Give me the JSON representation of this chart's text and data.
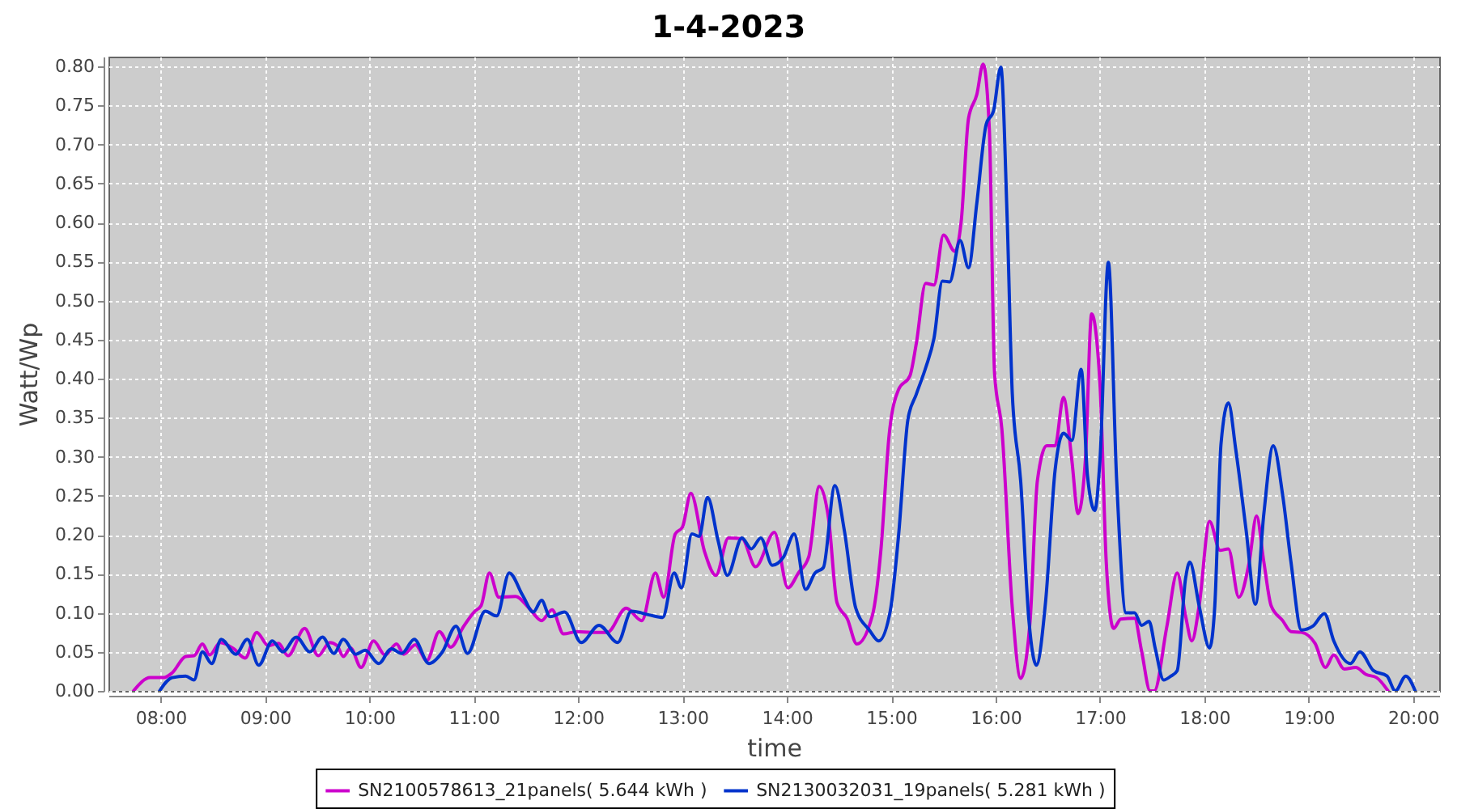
{
  "chart_data": {
    "type": "line",
    "title": "1-4-2023",
    "xlabel": "time",
    "ylabel": "Watt/Wp",
    "xlim": [
      7.5,
      20.25
    ],
    "ylim": [
      0,
      0.8125
    ],
    "xticks": [
      {
        "value": 8,
        "label": "08:00"
      },
      {
        "value": 9,
        "label": "09:00"
      },
      {
        "value": 10,
        "label": "10:00"
      },
      {
        "value": 11,
        "label": "11:00"
      },
      {
        "value": 12,
        "label": "12:00"
      },
      {
        "value": 13,
        "label": "13:00"
      },
      {
        "value": 14,
        "label": "14:00"
      },
      {
        "value": 15,
        "label": "15:00"
      },
      {
        "value": 16,
        "label": "16:00"
      },
      {
        "value": 17,
        "label": "17:00"
      },
      {
        "value": 18,
        "label": "18:00"
      },
      {
        "value": 19,
        "label": "19:00"
      },
      {
        "value": 20,
        "label": "20:00"
      }
    ],
    "yticks": [
      {
        "value": 0,
        "label": "0.00"
      },
      {
        "value": 0.05,
        "label": "0.05"
      },
      {
        "value": 0.1,
        "label": "0.10"
      },
      {
        "value": 0.15,
        "label": "0.15"
      },
      {
        "value": 0.2,
        "label": "0.20"
      },
      {
        "value": 0.25,
        "label": "0.25"
      },
      {
        "value": 0.3,
        "label": "0.30"
      },
      {
        "value": 0.35,
        "label": "0.35"
      },
      {
        "value": 0.4,
        "label": "0.40"
      },
      {
        "value": 0.45,
        "label": "0.45"
      },
      {
        "value": 0.5,
        "label": "0.50"
      },
      {
        "value": 0.55,
        "label": "0.55"
      },
      {
        "value": 0.6,
        "label": "0.60"
      },
      {
        "value": 0.65,
        "label": "0.65"
      },
      {
        "value": 0.7,
        "label": "0.70"
      },
      {
        "value": 0.75,
        "label": "0.75"
      },
      {
        "value": 0.8,
        "label": "0.80"
      }
    ],
    "grid": true,
    "legend": "bottom",
    "line_style": "solid",
    "series": [
      {
        "name": "SN2100578613_21panels( 5.644 kWh )",
        "color": "#cc00cc",
        "x": [
          7.74,
          7.9,
          8.03,
          8.11,
          8.24,
          8.32,
          8.4,
          8.47,
          8.57,
          8.7,
          8.81,
          8.92,
          9.03,
          9.13,
          9.22,
          9.38,
          9.51,
          9.62,
          9.69,
          9.75,
          9.82,
          9.92,
          10.04,
          10.15,
          10.26,
          10.33,
          10.44,
          10.55,
          10.67,
          10.78,
          10.9,
          11.01,
          11.07,
          11.15,
          11.24,
          11.4,
          11.53,
          11.65,
          11.75,
          11.86,
          11.99,
          12.13,
          12.28,
          12.46,
          12.61,
          12.74,
          12.82,
          12.93,
          13.0,
          13.08,
          13.21,
          13.32,
          13.44,
          13.57,
          13.7,
          13.88,
          14.01,
          14.11,
          14.21,
          14.31,
          14.4,
          14.48,
          14.58,
          14.67,
          14.82,
          14.9,
          14.98,
          15.07,
          15.18,
          15.24,
          15.33,
          15.41,
          15.5,
          15.61,
          15.67,
          15.74,
          15.82,
          15.88,
          15.94,
          15.99,
          16.06,
          16.16,
          16.24,
          16.33,
          16.4,
          16.49,
          16.57,
          16.65,
          16.73,
          16.79,
          16.86,
          16.92,
          17.0,
          17.06,
          17.13,
          17.2,
          17.33,
          17.4,
          17.48,
          17.52,
          17.64,
          17.74,
          17.82,
          17.88,
          17.95,
          18.05,
          18.15,
          18.23,
          18.33,
          18.43,
          18.5,
          18.57,
          18.64,
          18.75,
          18.83,
          18.93,
          19.06,
          19.16,
          19.24,
          19.34,
          19.45,
          19.55,
          19.65,
          19.76
        ],
        "values": [
          0.0,
          0.017,
          0.017,
          0.023,
          0.044,
          0.045,
          0.06,
          0.046,
          0.062,
          0.054,
          0.042,
          0.075,
          0.058,
          0.061,
          0.045,
          0.08,
          0.045,
          0.062,
          0.058,
          0.044,
          0.055,
          0.03,
          0.064,
          0.046,
          0.06,
          0.047,
          0.059,
          0.039,
          0.076,
          0.056,
          0.082,
          0.102,
          0.109,
          0.151,
          0.12,
          0.121,
          0.106,
          0.09,
          0.104,
          0.073,
          0.076,
          0.075,
          0.075,
          0.106,
          0.09,
          0.151,
          0.12,
          0.201,
          0.21,
          0.253,
          0.179,
          0.148,
          0.196,
          0.195,
          0.159,
          0.203,
          0.132,
          0.151,
          0.172,
          0.262,
          0.22,
          0.113,
          0.092,
          0.06,
          0.097,
          0.179,
          0.328,
          0.386,
          0.404,
          0.445,
          0.522,
          0.52,
          0.584,
          0.563,
          0.601,
          0.733,
          0.764,
          0.803,
          0.719,
          0.407,
          0.335,
          0.106,
          0.016,
          0.089,
          0.269,
          0.314,
          0.314,
          0.376,
          0.296,
          0.227,
          0.296,
          0.483,
          0.393,
          0.165,
          0.08,
          0.092,
          0.093,
          0.05,
          0.0,
          0.0,
          0.082,
          0.151,
          0.096,
          0.064,
          0.109,
          0.217,
          0.18,
          0.182,
          0.12,
          0.165,
          0.224,
          0.165,
          0.109,
          0.09,
          0.076,
          0.075,
          0.061,
          0.03,
          0.046,
          0.028,
          0.03,
          0.021,
          0.017,
          0.0
        ]
      },
      {
        "name": "SN2130032031_19panels( 5.281 kWh )",
        "color": "#0033cc",
        "x": [
          7.99,
          8.11,
          8.24,
          8.32,
          8.4,
          8.49,
          8.58,
          8.72,
          8.83,
          8.94,
          9.07,
          9.17,
          9.3,
          9.43,
          9.55,
          9.66,
          9.75,
          9.87,
          9.96,
          10.09,
          10.21,
          10.31,
          10.43,
          10.57,
          10.7,
          10.83,
          10.94,
          11.11,
          11.22,
          11.34,
          11.47,
          11.57,
          11.65,
          11.73,
          11.87,
          12.03,
          12.2,
          12.38,
          12.51,
          12.69,
          12.81,
          12.92,
          12.99,
          13.09,
          13.16,
          13.24,
          13.34,
          13.43,
          13.57,
          13.66,
          13.75,
          13.86,
          13.97,
          14.07,
          14.18,
          14.27,
          14.35,
          14.46,
          14.55,
          14.66,
          14.79,
          14.88,
          14.99,
          15.07,
          15.16,
          15.24,
          15.33,
          15.41,
          15.49,
          15.56,
          15.66,
          15.74,
          15.82,
          15.91,
          15.98,
          16.05,
          16.11,
          16.16,
          16.24,
          16.32,
          16.39,
          16.48,
          16.57,
          16.65,
          16.73,
          16.82,
          16.88,
          16.95,
          17.0,
          17.08,
          17.16,
          17.25,
          17.33,
          17.4,
          17.47,
          17.53,
          17.61,
          17.68,
          17.74,
          17.82,
          17.86,
          17.95,
          18.05,
          18.1,
          18.16,
          18.23,
          18.3,
          18.4,
          18.49,
          18.57,
          18.66,
          18.75,
          18.83,
          18.93,
          19.04,
          19.15,
          19.24,
          19.4,
          19.49,
          19.62,
          19.75,
          19.83,
          19.93,
          20.02
        ],
        "values": [
          0.0,
          0.017,
          0.019,
          0.014,
          0.05,
          0.035,
          0.066,
          0.047,
          0.066,
          0.033,
          0.064,
          0.05,
          0.069,
          0.05,
          0.069,
          0.048,
          0.066,
          0.047,
          0.052,
          0.035,
          0.054,
          0.048,
          0.066,
          0.035,
          0.05,
          0.083,
          0.048,
          0.102,
          0.096,
          0.151,
          0.122,
          0.101,
          0.116,
          0.095,
          0.101,
          0.062,
          0.084,
          0.062,
          0.102,
          0.097,
          0.094,
          0.151,
          0.132,
          0.201,
          0.198,
          0.248,
          0.193,
          0.148,
          0.196,
          0.182,
          0.196,
          0.161,
          0.172,
          0.201,
          0.13,
          0.151,
          0.158,
          0.263,
          0.206,
          0.106,
          0.078,
          0.064,
          0.102,
          0.199,
          0.348,
          0.38,
          0.414,
          0.452,
          0.525,
          0.524,
          0.577,
          0.542,
          0.625,
          0.726,
          0.743,
          0.799,
          0.608,
          0.38,
          0.269,
          0.089,
          0.033,
          0.116,
          0.283,
          0.33,
          0.321,
          0.412,
          0.276,
          0.231,
          0.296,
          0.549,
          0.269,
          0.1,
          0.1,
          0.084,
          0.089,
          0.054,
          0.014,
          0.019,
          0.026,
          0.144,
          0.165,
          0.109,
          0.055,
          0.109,
          0.317,
          0.369,
          0.31,
          0.206,
          0.111,
          0.227,
          0.314,
          0.251,
          0.165,
          0.078,
          0.083,
          0.099,
          0.064,
          0.035,
          0.05,
          0.026,
          0.019,
          0.0,
          0.019,
          0.0
        ]
      }
    ]
  }
}
